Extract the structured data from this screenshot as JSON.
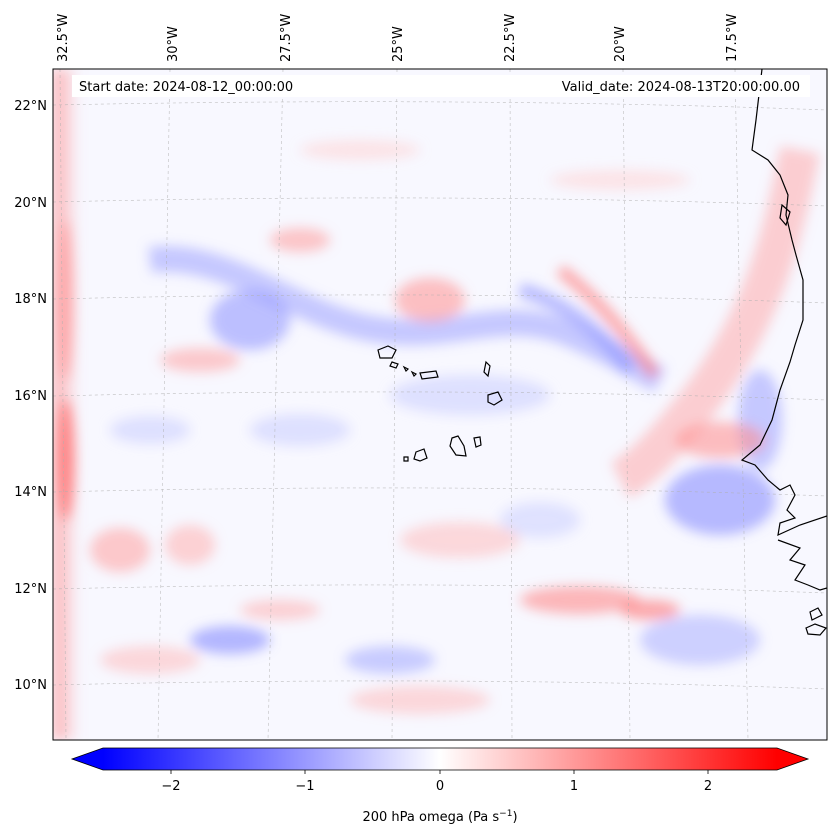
{
  "map": {
    "start_date": "Start date: 2024-08-12_00:00:00",
    "valid_date": "Valid_date: 2024-08-13T20:00:00.00",
    "lon_labels": [
      "32.5°W",
      "30°W",
      "27.5°W",
      "25°W",
      "22.5°W",
      "20°W",
      "17.5°W"
    ],
    "lat_labels": [
      "22°N",
      "20°N",
      "18°N",
      "16°N",
      "14°N",
      "12°N",
      "10°N"
    ],
    "field": "200 hPa omega",
    "colormap": "bwr"
  },
  "colorbar": {
    "ticks": [
      "−2",
      "−1",
      "0",
      "1",
      "2"
    ],
    "label_text": "200 hPa omega (Pa s",
    "label_sup": "−1",
    "label_close": ")",
    "min": -2.6,
    "max": 2.6,
    "colors": {
      "negative": "#0000ff",
      "zero": "#ffffff",
      "positive": "#ff0000"
    }
  }
}
